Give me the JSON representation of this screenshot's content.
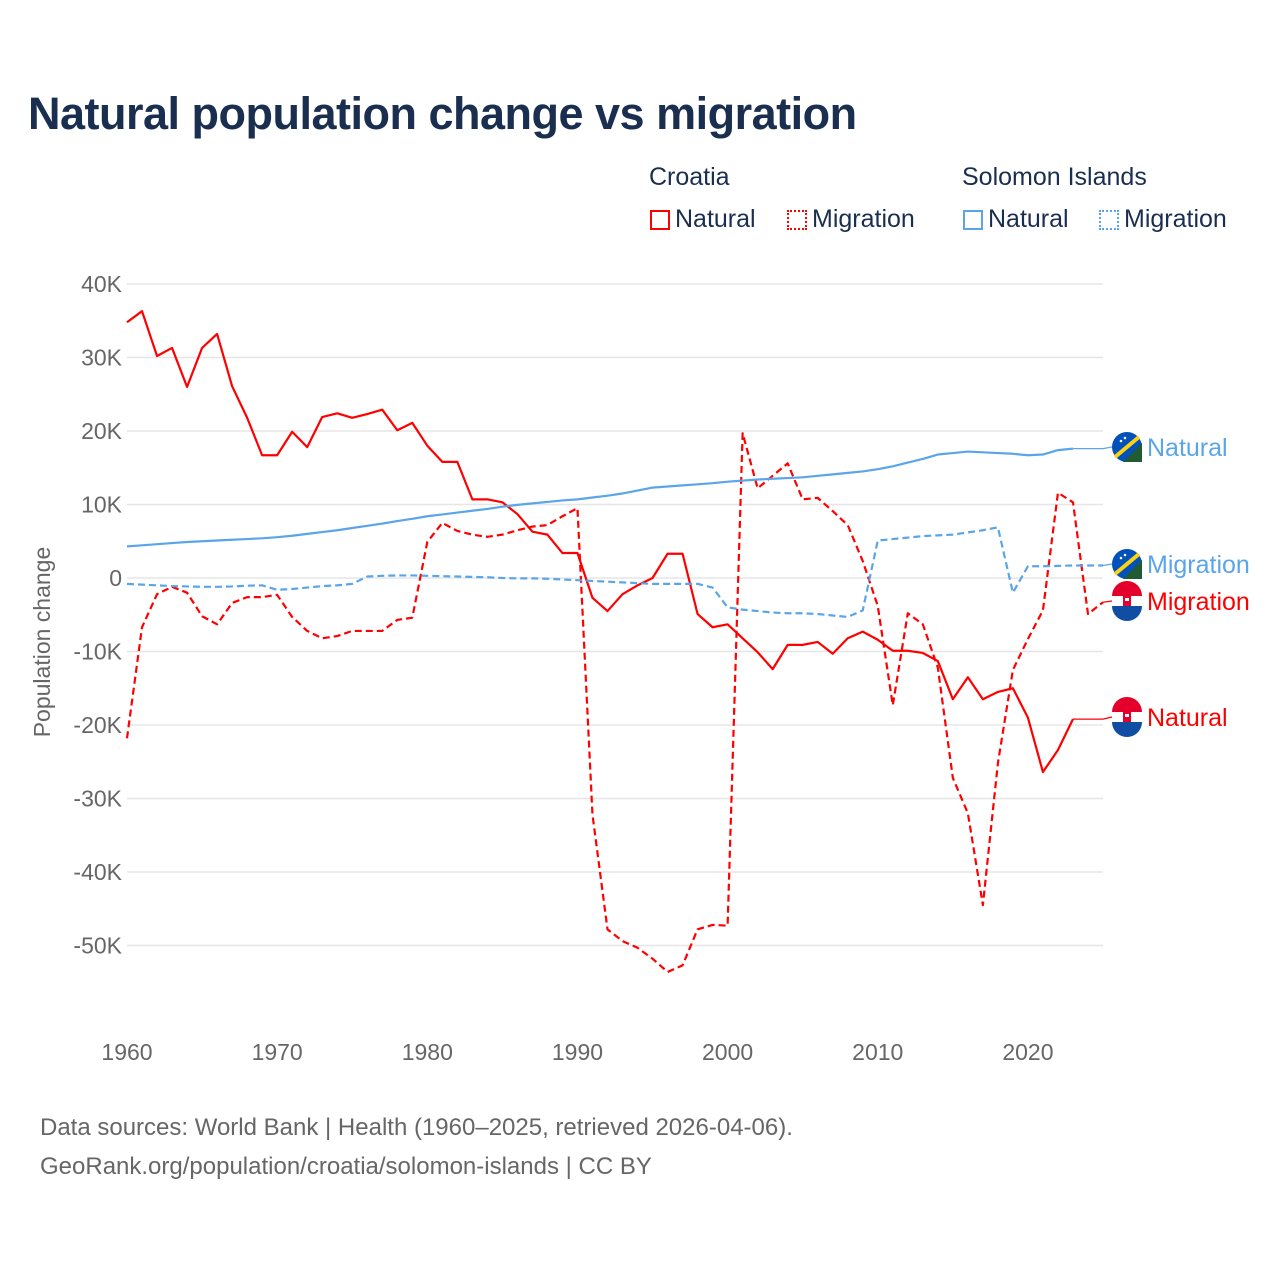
{
  "title": "Natural population change vs migration",
  "legend": {
    "groups": [
      {
        "name": "Croatia",
        "items": [
          "Natural",
          "Migration"
        ],
        "color": "#ff0000"
      },
      {
        "name": "Solomon Islands",
        "items": [
          "Natural",
          "Migration"
        ],
        "color": "#5aa5ea"
      }
    ]
  },
  "source_lines": [
    "Data sources: World Bank | Health (1960–2025, retrieved 2026-04-06).",
    "GeoRank.org/population/croatia/solomon-islands | CC BY"
  ],
  "chart_data": {
    "type": "line",
    "title": "Natural population change vs migration",
    "xlabel": "",
    "ylabel": "Population change",
    "xlim": [
      1960,
      2025
    ],
    "ylim": [
      -55000,
      40000
    ],
    "x_ticks": [
      1960,
      1970,
      1980,
      1990,
      2000,
      2010,
      2020
    ],
    "y_ticks": [
      {
        "v": 40000,
        "l": "40K"
      },
      {
        "v": 30000,
        "l": "30K"
      },
      {
        "v": 20000,
        "l": "20K"
      },
      {
        "v": 10000,
        "l": "10K"
      },
      {
        "v": 0,
        "l": "0"
      },
      {
        "v": -10000,
        "l": "-10K"
      },
      {
        "v": -20000,
        "l": "-20K"
      },
      {
        "v": -30000,
        "l": "-30K"
      },
      {
        "v": -40000,
        "l": "-40K"
      },
      {
        "v": -50000,
        "l": "-50K"
      }
    ],
    "grid": true,
    "legend_position": "top-right",
    "series": [
      {
        "name": "Croatia Natural",
        "label": "Natural",
        "color": "#ff0000",
        "dash": false,
        "flag": "croatia",
        "start": 1960,
        "values": [
          34800,
          36300,
          30200,
          31300,
          26000,
          31300,
          33200,
          26100,
          21800,
          16700,
          16700,
          19900,
          17800,
          21900,
          22400,
          21800,
          22300,
          22900,
          20100,
          21100,
          18000,
          15800,
          15800,
          10700,
          10700,
          10300,
          8700,
          6300,
          5900,
          3400,
          3400,
          -2700,
          -4500,
          -2200,
          -1000,
          0,
          3300,
          3300,
          -4900,
          -6700,
          -6300,
          -8200,
          -10100,
          -12400,
          -9100,
          -9100,
          -8700,
          -10300,
          -8200,
          -7300,
          -8400,
          -9900,
          -9900,
          -10200,
          -11300,
          -16500,
          -13500,
          -16500,
          -15500,
          -15000,
          -19000,
          -26400,
          -23400,
          -19200
        ]
      },
      {
        "name": "Croatia Migration",
        "label": "Migration",
        "color": "#ff0000",
        "dash": true,
        "flag": "croatia",
        "start": 1960,
        "values": [
          -21800,
          -6700,
          -2200,
          -1200,
          -2000,
          -5200,
          -6300,
          -3400,
          -2600,
          -2600,
          -2300,
          -5300,
          -7200,
          -8200,
          -7900,
          -7200,
          -7200,
          -7200,
          -5700,
          -5400,
          4900,
          7500,
          6400,
          5900,
          5600,
          5900,
          6500,
          7000,
          7200,
          8400,
          9500,
          -32200,
          -47800,
          -49400,
          -50300,
          -51800,
          -53600,
          -52700,
          -47800,
          -47200,
          -47300,
          19700,
          12200,
          13900,
          15600,
          10700,
          10900,
          9100,
          7200,
          2300,
          -3800,
          -17300,
          -4800,
          -6300,
          -12200,
          -27200,
          -32000,
          -44500,
          -25200,
          -12500,
          -8300,
          -4400,
          11600,
          10300,
          -4900,
          -3300
        ]
      },
      {
        "name": "Solomon Islands Natural",
        "label": "Natural",
        "color": "#5aa5ea",
        "dash": false,
        "flag": "solomon",
        "start": 1960,
        "values": [
          4300,
          4450,
          4600,
          4750,
          4900,
          5000,
          5100,
          5200,
          5300,
          5400,
          5550,
          5750,
          6000,
          6250,
          6500,
          6800,
          7100,
          7400,
          7750,
          8050,
          8400,
          8650,
          8900,
          9150,
          9400,
          9700,
          9950,
          10150,
          10350,
          10550,
          10700,
          10950,
          11200,
          11500,
          11900,
          12300,
          12450,
          12600,
          12750,
          12900,
          13100,
          13250,
          13400,
          13500,
          13600,
          13700,
          13900,
          14100,
          14300,
          14500,
          14800,
          15200,
          15700,
          16200,
          16800,
          17000,
          17200,
          17100,
          17000,
          16900,
          16700,
          16800,
          17400,
          17600
        ]
      },
      {
        "name": "Solomon Islands Migration",
        "label": "Migration",
        "color": "#5aa5ea",
        "dash": true,
        "flag": "solomon",
        "start": 1960,
        "values": [
          -800,
          -900,
          -1000,
          -1100,
          -1150,
          -1200,
          -1200,
          -1150,
          -1050,
          -1000,
          -1600,
          -1500,
          -1300,
          -1100,
          -1000,
          -800,
          200,
          300,
          350,
          350,
          300,
          250,
          200,
          150,
          100,
          0,
          -50,
          -50,
          -100,
          -200,
          -300,
          -400,
          -500,
          -600,
          -700,
          -800,
          -800,
          -800,
          -800,
          -1300,
          -4000,
          -4300,
          -4500,
          -4700,
          -4800,
          -4800,
          -4900,
          -5100,
          -5300,
          -4400,
          5100,
          5300,
          5500,
          5700,
          5800,
          5900,
          6200,
          6500,
          6900,
          -2000,
          1600,
          1600,
          1650,
          1700,
          1700,
          1700
        ]
      }
    ]
  }
}
